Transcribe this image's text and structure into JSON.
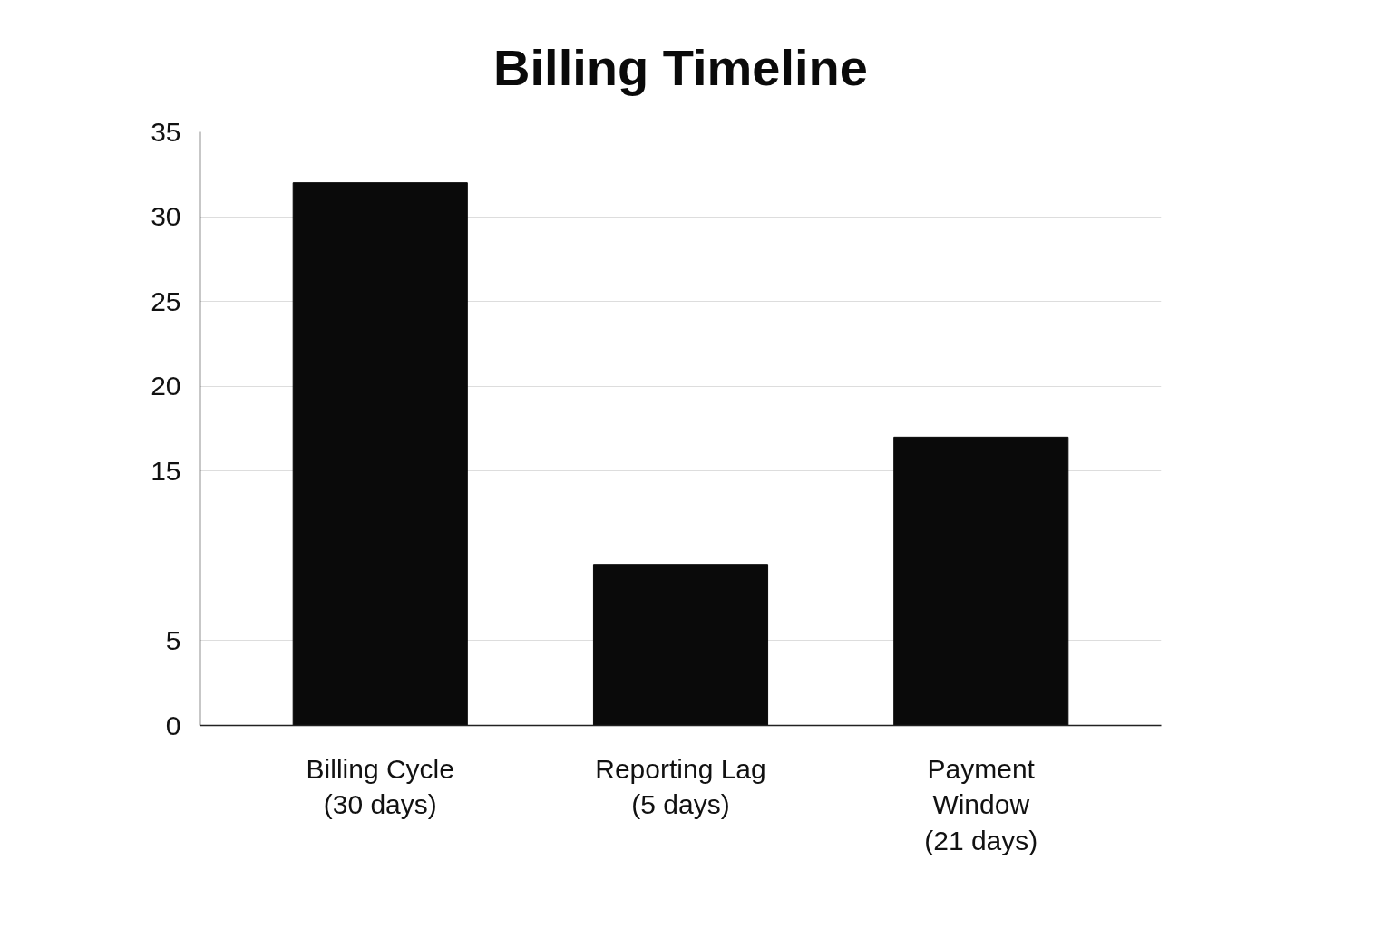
{
  "chart_data": {
    "type": "bar",
    "title": "Billing Timeline",
    "categories": [
      "Billing Cycle\n(30 days)",
      "Reporting Lag\n(5 days)",
      "Payment\nWindow\n(21 days)"
    ],
    "values": [
      32,
      9.5,
      17
    ],
    "color": "#0a0a0a",
    "ylim": [
      0,
      35
    ],
    "yticks": [
      0,
      5,
      15,
      20,
      25,
      30,
      35
    ],
    "grid": "y"
  }
}
